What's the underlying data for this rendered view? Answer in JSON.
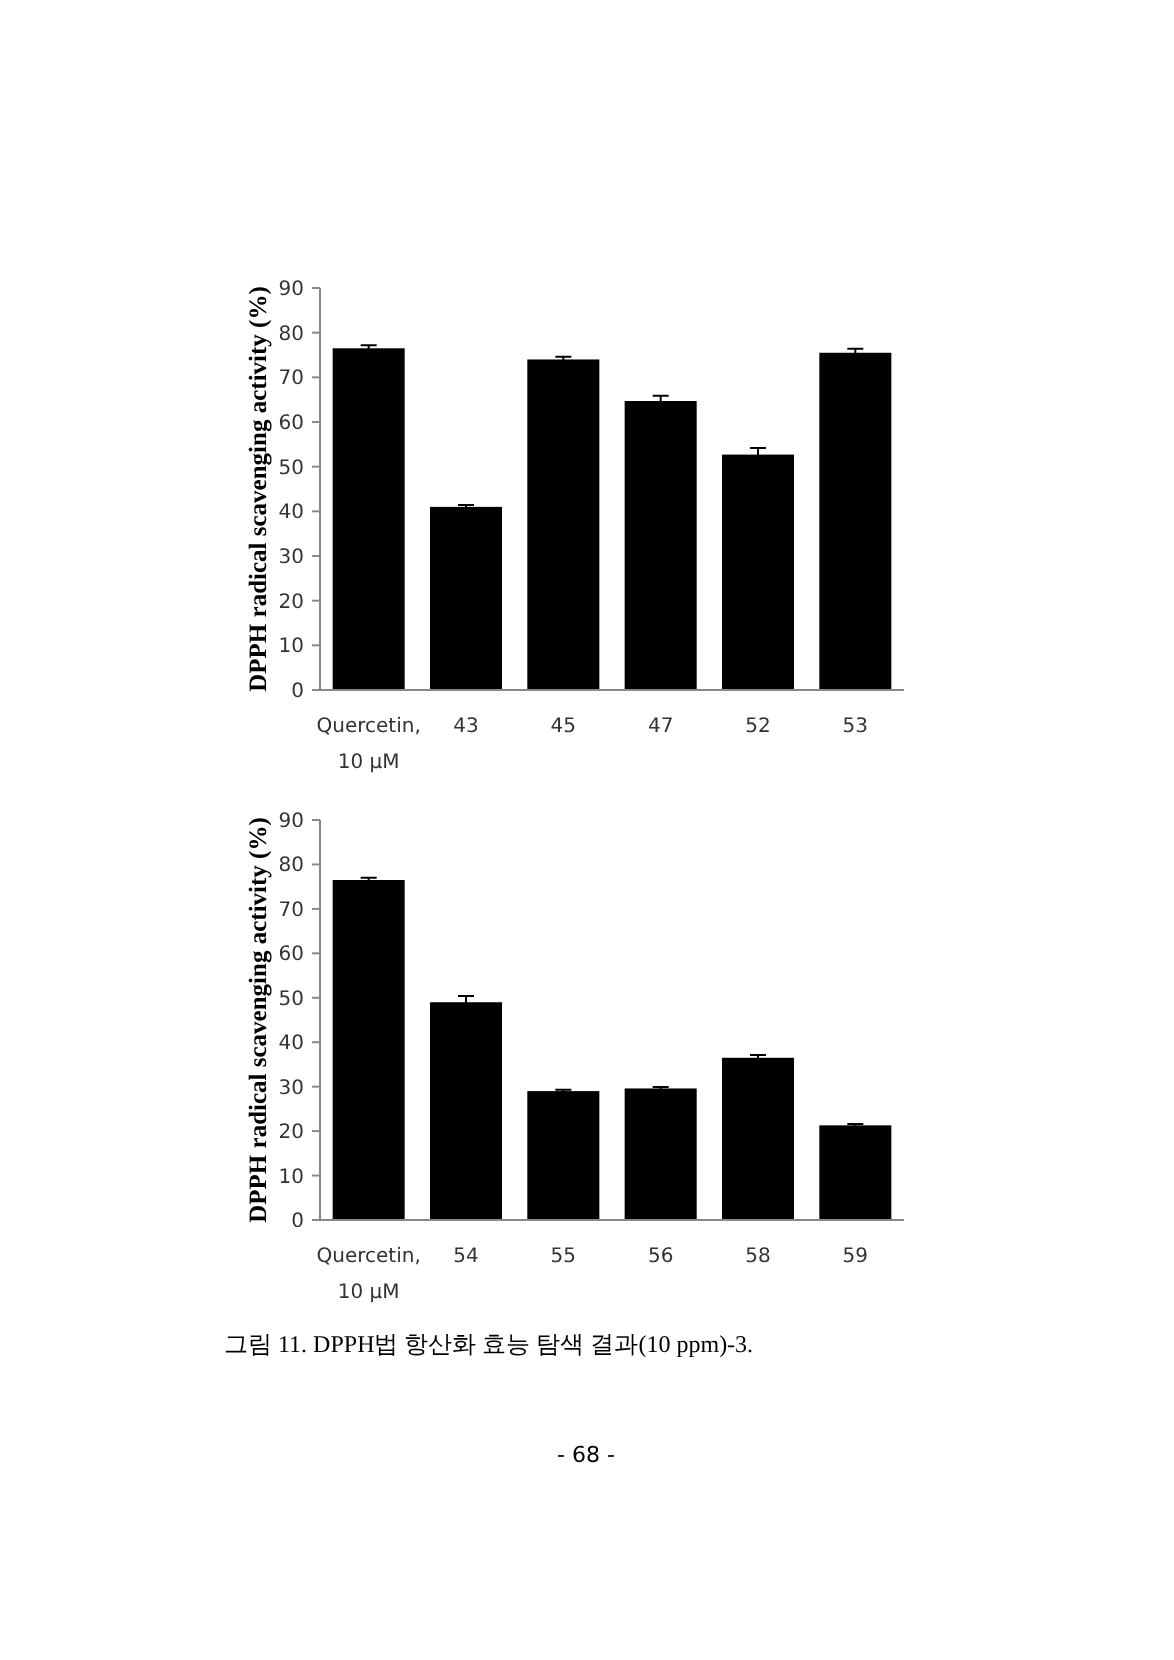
{
  "chart_data": [
    {
      "type": "bar",
      "ylabel": "DPPH radical scavenging activity (%)",
      "categories": [
        "Quercetin,\n10 μM",
        "43",
        "45",
        "47",
        "52",
        "53"
      ],
      "values": [
        76.5,
        41,
        74,
        64.7,
        52.7,
        75.5
      ],
      "errors": [
        0.7,
        0.4,
        0.6,
        1.2,
        1.5,
        0.9
      ],
      "color": "#000000",
      "ylim": [
        0,
        90
      ],
      "yticks": [
        0,
        10,
        20,
        30,
        40,
        50,
        60,
        70,
        80,
        90
      ]
    },
    {
      "type": "bar",
      "ylabel": "DPPH radical scavenging activity (%)",
      "categories": [
        "Quercetin,\n10 μM",
        "54",
        "55",
        "56",
        "58",
        "59"
      ],
      "values": [
        76.5,
        49,
        29,
        29.6,
        36.5,
        21.3
      ],
      "errors": [
        0.5,
        1.4,
        0.3,
        0.3,
        0.6,
        0.3
      ],
      "color": "#000000",
      "ylim": [
        0,
        90
      ],
      "yticks": [
        0,
        10,
        20,
        30,
        40,
        50,
        60,
        70,
        80,
        90
      ],
      "annotations": [
        "그림 11. DPPH법 항산화 효능 탐색 결과(10 ppm)-3.",
        "- 68 -"
      ]
    }
  ]
}
